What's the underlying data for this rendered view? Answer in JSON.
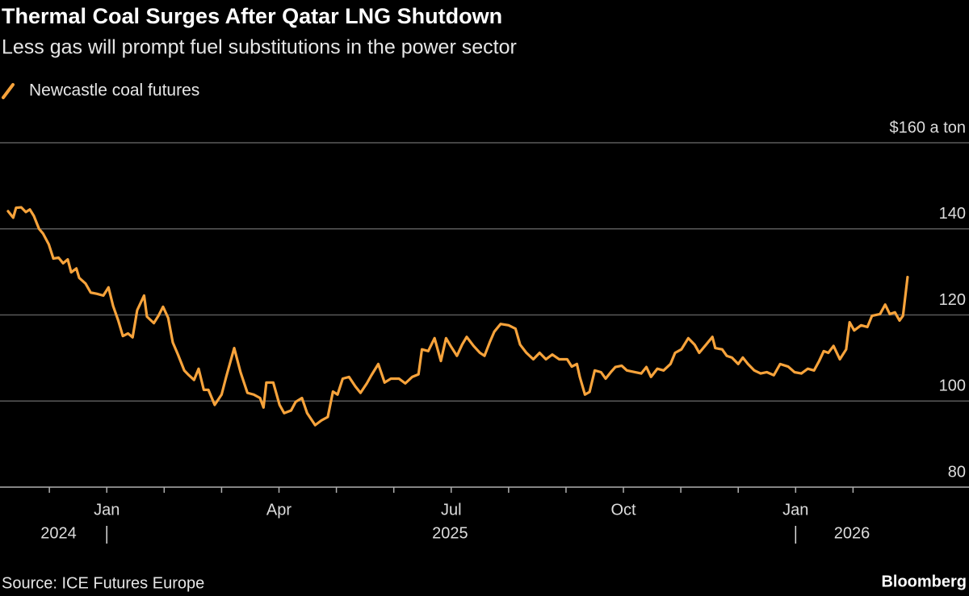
{
  "chart_data": {
    "type": "line",
    "title": "Thermal Coal Surges After Qatar LNG Shutdown",
    "subtitle": "Less gas will prompt fuel substitutions in the power sector",
    "source": "Source: ICE Futures Europe",
    "brand": "Bloomberg",
    "grid": true,
    "ylim": [
      80,
      160
    ],
    "yticks": [
      80,
      100,
      120,
      140,
      {
        "value": 160,
        "label": "$160 a ton"
      }
    ],
    "xlim": [
      -1.86,
      15.02
    ],
    "xticks": [
      {
        "value": 0,
        "label": "Jan"
      },
      {
        "value": 3,
        "label": "Apr"
      },
      {
        "value": 6,
        "label": "Jul"
      },
      {
        "value": 9,
        "label": "Oct"
      },
      {
        "value": 12,
        "label": "Jan"
      }
    ],
    "xminorticks": [
      -1,
      0,
      1,
      2,
      3,
      4,
      5,
      6,
      7,
      8,
      9,
      10,
      11,
      12,
      13
    ],
    "year_ticks": [
      {
        "value": -0.84,
        "label": "2024"
      },
      {
        "value": 5.98,
        "label": "2025"
      },
      {
        "value": 12.98,
        "label": "2026"
      }
    ],
    "year_breaks": [
      0,
      12
    ],
    "x": [
      -1.72,
      -1.63,
      -1.58,
      -1.49,
      -1.41,
      -1.34,
      -1.27,
      -1.18,
      -1.11,
      -1.01,
      -0.93,
      -0.84,
      -0.76,
      -0.68,
      -0.62,
      -0.53,
      -0.48,
      -0.37,
      -0.28,
      -0.17,
      -0.06,
      0.03,
      0.11,
      0.2,
      0.28,
      0.37,
      0.45,
      0.53,
      0.65,
      0.7,
      0.82,
      0.9,
      0.98,
      1.07,
      1.15,
      1.24,
      1.35,
      1.43,
      1.52,
      1.6,
      1.69,
      1.77,
      1.88,
      2.0,
      2.08,
      2.22,
      2.33,
      2.45,
      2.56,
      2.67,
      2.73,
      2.78,
      2.9,
      3.01,
      3.09,
      3.21,
      3.29,
      3.4,
      3.49,
      3.63,
      3.74,
      3.85,
      3.94,
      4.02,
      4.11,
      4.22,
      4.33,
      4.42,
      4.53,
      4.61,
      4.73,
      4.84,
      4.95,
      5.09,
      5.2,
      5.32,
      5.43,
      5.49,
      5.6,
      5.71,
      5.82,
      5.91,
      5.99,
      6.1,
      6.19,
      6.27,
      6.39,
      6.5,
      6.58,
      6.67,
      6.75,
      6.86,
      7.0,
      7.12,
      7.2,
      7.31,
      7.43,
      7.54,
      7.65,
      7.76,
      7.88,
      8.02,
      8.1,
      8.19,
      8.24,
      8.33,
      8.41,
      8.5,
      8.61,
      8.69,
      8.78,
      8.86,
      8.97,
      9.06,
      9.2,
      9.31,
      9.4,
      9.48,
      9.59,
      9.7,
      9.82,
      9.9,
      10.01,
      10.13,
      10.24,
      10.32,
      10.44,
      10.55,
      10.6,
      10.72,
      10.8,
      10.89,
      11.0,
      11.08,
      11.17,
      11.28,
      11.39,
      11.5,
      11.62,
      11.73,
      11.87,
      11.98,
      12.1,
      12.21,
      12.32,
      12.41,
      12.49,
      12.57,
      12.66,
      12.77,
      12.88,
      12.94,
      13.02,
      13.14,
      13.25,
      13.33,
      13.47,
      13.56,
      13.64,
      13.73,
      13.81,
      13.87,
      13.95
    ],
    "series": [
      {
        "name": "Newcastle coal futures",
        "color": "#f7a33b",
        "values": [
          144.1,
          142.6,
          144.9,
          145.0,
          143.9,
          144.5,
          143.0,
          140.0,
          138.9,
          136.4,
          133.1,
          133.3,
          132.0,
          132.9,
          129.9,
          130.8,
          128.6,
          127.3,
          125.2,
          124.9,
          124.5,
          126.4,
          122.1,
          118.7,
          115.1,
          115.7,
          114.8,
          121.1,
          124.5,
          119.6,
          118.1,
          119.8,
          121.9,
          119.3,
          113.6,
          110.8,
          107.1,
          106.0,
          104.9,
          107.5,
          102.6,
          102.6,
          99.1,
          101.5,
          105.6,
          112.3,
          106.7,
          101.9,
          101.5,
          100.7,
          98.5,
          104.3,
          104.3,
          99.1,
          97.2,
          97.8,
          99.8,
          100.7,
          97.2,
          94.4,
          95.5,
          96.3,
          102.2,
          101.5,
          105.2,
          105.6,
          103.4,
          101.9,
          104.1,
          106.0,
          108.6,
          104.3,
          105.2,
          105.2,
          104.1,
          105.6,
          106.2,
          112.0,
          111.6,
          114.6,
          109.3,
          114.6,
          112.8,
          110.5,
          113.1,
          114.9,
          112.8,
          111.2,
          110.5,
          113.6,
          116.1,
          117.9,
          117.6,
          116.8,
          113.1,
          111.2,
          109.7,
          111.2,
          109.7,
          110.8,
          109.7,
          109.7,
          108.0,
          108.6,
          105.6,
          101.5,
          102.1,
          107.1,
          106.7,
          105.2,
          106.7,
          107.9,
          108.2,
          107.1,
          106.7,
          106.4,
          107.9,
          105.6,
          107.5,
          107.1,
          108.6,
          111.2,
          112.0,
          114.6,
          113.1,
          111.2,
          113.1,
          114.9,
          112.3,
          112.0,
          110.5,
          110.1,
          108.6,
          110.1,
          108.6,
          107.1,
          106.4,
          106.7,
          106.0,
          108.6,
          108.0,
          106.7,
          106.4,
          107.5,
          107.1,
          109.3,
          111.6,
          111.2,
          112.8,
          109.7,
          112.0,
          118.3,
          116.4,
          117.6,
          117.2,
          119.8,
          120.2,
          122.4,
          120.2,
          120.6,
          118.7,
          119.8,
          128.8
        ]
      }
    ]
  }
}
